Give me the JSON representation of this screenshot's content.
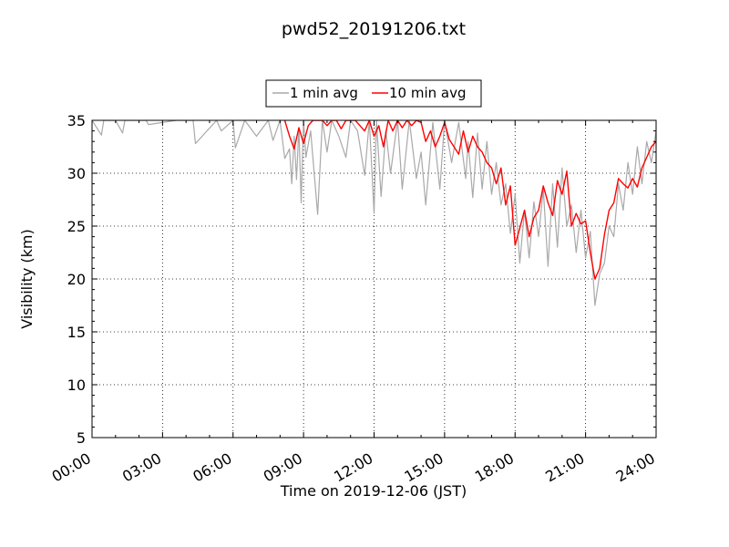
{
  "chart_data": {
    "type": "line",
    "title": "pwd52_20191206.txt",
    "xlabel": "Time on 2019-12-06 (JST)",
    "ylabel": "Visibility (km)",
    "xlim": [
      0,
      24
    ],
    "ylim": [
      5,
      35
    ],
    "x_ticks": [
      0,
      3,
      6,
      9,
      12,
      15,
      18,
      21,
      24
    ],
    "x_tick_labels": [
      "00:00",
      "03:00",
      "06:00",
      "09:00",
      "12:00",
      "15:00",
      "18:00",
      "21:00",
      "24:00"
    ],
    "y_ticks": [
      5,
      10,
      15,
      20,
      25,
      30,
      35
    ],
    "y_tick_labels": [
      "5",
      "10",
      "15",
      "20",
      "25",
      "30",
      "35"
    ],
    "grid": true,
    "legend_position": "top-center",
    "series": [
      {
        "name": "1 min avg",
        "color": "#a9a9a9",
        "x": [
          0.0,
          0.4,
          0.5,
          0.9,
          1.0,
          1.3,
          1.4,
          2.3,
          2.4,
          3.6,
          4.3,
          4.4,
          5.3,
          5.5,
          6.0,
          6.1,
          6.5,
          7.0,
          7.5,
          7.7,
          8.0,
          8.2,
          8.4,
          8.5,
          8.6,
          8.7,
          8.8,
          8.9,
          9.0,
          9.1,
          9.3,
          9.6,
          9.8,
          10.0,
          10.2,
          10.5,
          10.8,
          11.0,
          11.3,
          11.6,
          11.8,
          12.0,
          12.1,
          12.3,
          12.5,
          12.7,
          13.0,
          13.2,
          13.5,
          13.8,
          14.0,
          14.2,
          14.5,
          14.8,
          15.0,
          15.3,
          15.6,
          15.9,
          16.0,
          16.2,
          16.4,
          16.6,
          16.8,
          17.0,
          17.2,
          17.4,
          17.6,
          17.8,
          18.0,
          18.2,
          18.4,
          18.6,
          18.8,
          19.0,
          19.2,
          19.4,
          19.6,
          19.8,
          20.0,
          20.2,
          20.4,
          20.6,
          20.8,
          21.0,
          21.2,
          21.4,
          21.6,
          21.8,
          22.0,
          22.2,
          22.4,
          22.6,
          22.8,
          23.0,
          23.2,
          23.4,
          23.6,
          23.8,
          24.0
        ],
        "values": [
          35,
          33.6,
          35,
          35,
          35,
          33.8,
          35,
          35,
          34.6,
          35,
          35,
          32.8,
          35,
          34,
          35,
          32.4,
          35,
          33.5,
          35,
          33.1,
          35,
          31.4,
          32.3,
          29,
          33.5,
          29.4,
          34.3,
          27.2,
          35,
          31.5,
          34,
          26.1,
          35,
          32,
          35,
          33.5,
          31.5,
          35,
          34,
          29.8,
          35,
          26.2,
          35,
          27.8,
          34,
          30,
          35,
          28.5,
          35,
          29.5,
          32,
          27,
          34.8,
          28.5,
          35,
          31,
          34.8,
          29.5,
          33,
          27.7,
          33.8,
          28.5,
          33,
          28,
          31,
          27,
          29,
          24.3,
          28,
          21.5,
          26.5,
          22,
          27.3,
          24,
          28.5,
          21.2,
          29,
          23,
          30.5,
          25,
          27,
          22.5,
          26.5,
          22,
          24.5,
          17.5,
          20.5,
          21.5,
          25,
          24,
          29,
          26.5,
          31,
          28,
          32.5,
          29,
          33,
          31,
          34
        ]
      },
      {
        "name": "10 min avg",
        "color": "#ff0000",
        "x": [
          8.2,
          8.4,
          8.6,
          8.8,
          9.0,
          9.2,
          9.4,
          9.6,
          9.8,
          10.0,
          10.2,
          10.4,
          10.6,
          10.8,
          11.0,
          11.2,
          11.4,
          11.6,
          11.8,
          12.0,
          12.2,
          12.4,
          12.6,
          12.8,
          13.0,
          13.2,
          13.4,
          13.6,
          13.8,
          14.0,
          14.2,
          14.4,
          14.6,
          14.8,
          15.0,
          15.2,
          15.4,
          15.6,
          15.8,
          16.0,
          16.2,
          16.4,
          16.6,
          16.8,
          17.0,
          17.2,
          17.4,
          17.6,
          17.8,
          18.0,
          18.2,
          18.4,
          18.6,
          18.8,
          19.0,
          19.2,
          19.4,
          19.6,
          19.8,
          20.0,
          20.2,
          20.4,
          20.6,
          20.8,
          21.0,
          21.2,
          21.4,
          21.6,
          21.8,
          22.0,
          22.2,
          22.4,
          22.6,
          22.8,
          23.0,
          23.2,
          23.4,
          23.6,
          23.8,
          24.0
        ],
        "values": [
          35,
          33.5,
          32.3,
          34.3,
          32.8,
          34.5,
          35,
          35,
          35,
          34.5,
          35,
          35,
          34.2,
          35,
          35,
          35,
          34.5,
          34,
          35,
          33.5,
          34.5,
          32.5,
          35,
          34,
          35,
          34.3,
          35,
          34.5,
          35,
          34.8,
          33,
          34,
          32.5,
          33.5,
          34.8,
          33.2,
          32.5,
          31.8,
          34,
          32,
          33.5,
          32.5,
          32,
          31,
          30.5,
          29,
          30.5,
          27,
          28.8,
          23.2,
          24.8,
          26.5,
          24,
          25.8,
          26.5,
          28.8,
          27.2,
          26,
          29.3,
          28,
          30.2,
          25,
          26.2,
          25.2,
          25.5,
          22.5,
          20,
          21,
          24.2,
          26.5,
          27.2,
          29.5,
          29,
          28.6,
          29.5,
          28.7,
          30.5,
          31.5,
          32.5,
          33
        ]
      }
    ]
  }
}
